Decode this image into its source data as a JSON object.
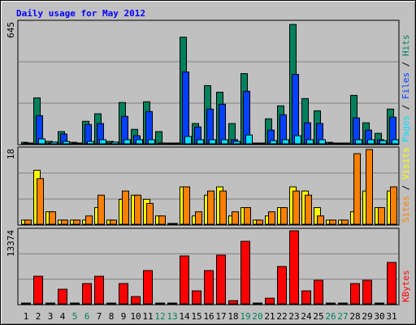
{
  "title": "Daily usage for May 2012",
  "legend_separator": " / ",
  "highlight_indices": [
    4,
    5,
    11,
    12,
    18,
    19,
    25,
    26
  ],
  "highlight_color": "#00805c",
  "chart_data": [
    {
      "type": "bar",
      "ylim": [
        0,
        645
      ],
      "series": [
        {
          "name": "Hits",
          "color": "#00805c",
          "values": [
            8,
            245,
            13,
            65,
            8,
            120,
            160,
            13,
            220,
            77,
            224,
            65,
            4,
            568,
            108,
            310,
            275,
            108,
            374,
            4,
            133,
            202,
            636,
            241,
            176,
            8,
            4,
            258,
            112,
            56,
            185
          ]
        },
        {
          "name": "Files",
          "color": "#0040ff",
          "values": [
            4,
            150,
            4,
            52,
            4,
            103,
            108,
            4,
            146,
            43,
            172,
            4,
            4,
            383,
            90,
            185,
            211,
            22,
            280,
            4,
            73,
            155,
            370,
            112,
            108,
            4,
            4,
            138,
            73,
            22,
            142
          ]
        },
        {
          "name": "Pages",
          "color": "#00e0ff",
          "values": [
            4,
            26,
            9,
            13,
            4,
            13,
            22,
            9,
            22,
            22,
            22,
            4,
            4,
            39,
            22,
            22,
            22,
            13,
            47,
            4,
            17,
            22,
            43,
            22,
            22,
            4,
            4,
            22,
            22,
            17,
            22
          ]
        }
      ]
    },
    {
      "type": "bar",
      "ylim": [
        0,
        18
      ],
      "series": [
        {
          "name": "Visits",
          "color": "#ffff00",
          "values": [
            1,
            13,
            3,
            1,
            1,
            1,
            4,
            1,
            6,
            7,
            6,
            2,
            0,
            9,
            2,
            7,
            9,
            2,
            4,
            1,
            2,
            4,
            9,
            8,
            4,
            1,
            1,
            3,
            8,
            4,
            8
          ]
        },
        {
          "name": "Sites",
          "color": "#ff8000",
          "values": [
            1,
            11,
            3,
            1,
            1,
            2,
            7,
            1,
            8,
            7,
            5,
            2,
            0,
            9,
            3,
            8,
            8,
            3,
            4,
            1,
            3,
            4,
            8,
            7,
            2,
            1,
            1,
            17,
            18,
            4,
            9
          ]
        }
      ]
    },
    {
      "type": "bar",
      "ylim": [
        0,
        13374
      ],
      "categories": [
        "1",
        "2",
        "3",
        "4",
        "5",
        "6",
        "7",
        "8",
        "9",
        "10",
        "11",
        "12",
        "13",
        "14",
        "15",
        "16",
        "17",
        "18",
        "19",
        "20",
        "21",
        "22",
        "23",
        "24",
        "25",
        "26",
        "27",
        "28",
        "29",
        "30",
        "31"
      ],
      "series": [
        {
          "name": "KBytes",
          "color": "#ff0000",
          "values": [
            60,
            5052,
            60,
            2675,
            60,
            3715,
            5052,
            60,
            3715,
            1337,
            6093,
            60,
            60,
            8767,
            2378,
            6093,
            8916,
            594,
            11442,
            60,
            1040,
            6836,
            13374,
            2378,
            4309,
            60,
            60,
            3715,
            4309,
            60,
            7579
          ]
        }
      ]
    }
  ]
}
